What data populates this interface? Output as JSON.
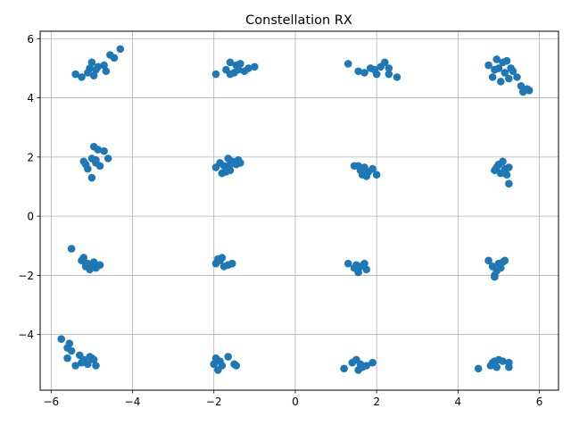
{
  "chart_data": {
    "type": "scatter",
    "title": "Constellation RX",
    "xlabel": "",
    "ylabel": "",
    "xlim": [
      -6.27,
      6.47
    ],
    "ylim": [
      -5.88,
      6.25
    ],
    "xticks": [
      -6,
      -4,
      -2,
      0,
      2,
      4,
      6
    ],
    "yticks": [
      -4,
      -2,
      0,
      2,
      4,
      6
    ],
    "grid": true,
    "marker_color": "#1f77b4",
    "series": [
      {
        "points": [
          [
            -5.4,
            4.8
          ],
          [
            -5.25,
            4.7
          ],
          [
            -5.1,
            4.85
          ],
          [
            -4.95,
            4.75
          ],
          [
            -4.85,
            5.05
          ],
          [
            -4.7,
            5.1
          ],
          [
            -4.65,
            4.9
          ],
          [
            -4.55,
            5.45
          ],
          [
            -4.45,
            5.35
          ],
          [
            -4.3,
            5.65
          ],
          [
            -5.0,
            5.2
          ],
          [
            -4.9,
            4.95
          ],
          [
            -5.05,
            5.0
          ],
          [
            -1.95,
            4.8
          ],
          [
            -1.7,
            4.95
          ],
          [
            -1.6,
            5.2
          ],
          [
            -1.5,
            4.85
          ],
          [
            -1.45,
            5.1
          ],
          [
            -1.35,
            5.15
          ],
          [
            -1.25,
            4.9
          ],
          [
            -1.15,
            5.0
          ],
          [
            -1.0,
            5.05
          ],
          [
            -1.6,
            4.8
          ],
          [
            -1.4,
            4.95
          ],
          [
            1.3,
            5.15
          ],
          [
            1.55,
            4.9
          ],
          [
            1.7,
            4.85
          ],
          [
            1.85,
            5.0
          ],
          [
            2.0,
            4.8
          ],
          [
            2.1,
            5.05
          ],
          [
            2.2,
            5.2
          ],
          [
            2.3,
            5.0
          ],
          [
            2.5,
            4.7
          ],
          [
            1.95,
            4.95
          ],
          [
            2.3,
            4.8
          ],
          [
            4.75,
            5.1
          ],
          [
            4.85,
            4.7
          ],
          [
            4.95,
            5.3
          ],
          [
            5.0,
            5.0
          ],
          [
            5.05,
            4.55
          ],
          [
            5.1,
            5.2
          ],
          [
            5.15,
            4.85
          ],
          [
            5.2,
            5.25
          ],
          [
            5.3,
            5.0
          ],
          [
            5.35,
            4.9
          ],
          [
            5.45,
            4.7
          ],
          [
            5.55,
            4.4
          ],
          [
            5.6,
            4.2
          ],
          [
            5.7,
            4.3
          ],
          [
            5.75,
            4.25
          ],
          [
            4.9,
            4.95
          ],
          [
            5.25,
            4.65
          ],
          [
            -5.2,
            1.85
          ],
          [
            -5.1,
            1.6
          ],
          [
            -5.0,
            1.95
          ],
          [
            -4.95,
            2.35
          ],
          [
            -4.9,
            1.8
          ],
          [
            -4.85,
            2.25
          ],
          [
            -4.8,
            1.7
          ],
          [
            -4.7,
            2.2
          ],
          [
            -4.6,
            1.95
          ],
          [
            -5.0,
            1.3
          ],
          [
            -5.15,
            1.75
          ],
          [
            -4.9,
            1.9
          ],
          [
            -1.95,
            1.65
          ],
          [
            -1.85,
            1.8
          ],
          [
            -1.75,
            1.7
          ],
          [
            -1.65,
            1.95
          ],
          [
            -1.6,
            1.55
          ],
          [
            -1.55,
            1.85
          ],
          [
            -1.45,
            1.75
          ],
          [
            -1.4,
            1.9
          ],
          [
            -1.35,
            1.8
          ],
          [
            -1.7,
            1.5
          ],
          [
            -1.8,
            1.45
          ],
          [
            -1.6,
            1.75
          ],
          [
            1.45,
            1.7
          ],
          [
            1.6,
            1.55
          ],
          [
            1.65,
            1.4
          ],
          [
            1.7,
            1.65
          ],
          [
            1.8,
            1.5
          ],
          [
            1.9,
            1.6
          ],
          [
            2.0,
            1.4
          ],
          [
            1.75,
            1.35
          ],
          [
            1.55,
            1.7
          ],
          [
            4.9,
            1.55
          ],
          [
            5.0,
            1.75
          ],
          [
            5.05,
            1.45
          ],
          [
            5.1,
            1.85
          ],
          [
            5.15,
            1.6
          ],
          [
            5.2,
            1.4
          ],
          [
            5.25,
            1.65
          ],
          [
            5.25,
            1.1
          ],
          [
            4.95,
            1.65
          ],
          [
            -5.5,
            -1.1
          ],
          [
            -5.25,
            -1.5
          ],
          [
            -5.15,
            -1.7
          ],
          [
            -5.05,
            -1.8
          ],
          [
            -4.95,
            -1.55
          ],
          [
            -4.9,
            -1.75
          ],
          [
            -4.8,
            -1.65
          ],
          [
            -5.1,
            -1.6
          ],
          [
            -5.0,
            -1.7
          ],
          [
            -5.2,
            -1.4
          ],
          [
            -1.95,
            -1.6
          ],
          [
            -1.85,
            -1.5
          ],
          [
            -1.8,
            -1.4
          ],
          [
            -1.75,
            -1.7
          ],
          [
            -1.65,
            -1.65
          ],
          [
            -1.55,
            -1.6
          ],
          [
            -1.9,
            -1.45
          ],
          [
            1.3,
            -1.6
          ],
          [
            1.45,
            -1.75
          ],
          [
            1.55,
            -1.9
          ],
          [
            1.6,
            -1.7
          ],
          [
            1.7,
            -1.6
          ],
          [
            1.75,
            -1.8
          ],
          [
            1.5,
            -1.65
          ],
          [
            4.75,
            -1.5
          ],
          [
            4.85,
            -1.7
          ],
          [
            4.9,
            -2.0
          ],
          [
            4.95,
            -1.85
          ],
          [
            5.0,
            -1.6
          ],
          [
            5.1,
            -1.55
          ],
          [
            5.15,
            -1.5
          ],
          [
            4.9,
            -2.05
          ],
          [
            5.05,
            -1.75
          ],
          [
            -5.75,
            -4.15
          ],
          [
            -5.6,
            -4.8
          ],
          [
            -5.55,
            -4.3
          ],
          [
            -5.5,
            -4.55
          ],
          [
            -5.4,
            -5.05
          ],
          [
            -5.3,
            -4.7
          ],
          [
            -5.2,
            -4.85
          ],
          [
            -5.1,
            -5.0
          ],
          [
            -5.05,
            -4.75
          ],
          [
            -4.95,
            -4.85
          ],
          [
            -4.9,
            -5.05
          ],
          [
            -5.25,
            -4.95
          ],
          [
            -5.0,
            -4.8
          ],
          [
            -5.6,
            -4.45
          ],
          [
            -2.0,
            -5.0
          ],
          [
            -1.95,
            -4.8
          ],
          [
            -1.9,
            -5.2
          ],
          [
            -1.8,
            -5.05
          ],
          [
            -1.65,
            -4.75
          ],
          [
            -1.5,
            -5.0
          ],
          [
            -1.45,
            -5.05
          ],
          [
            -1.85,
            -4.9
          ],
          [
            1.2,
            -5.15
          ],
          [
            1.4,
            -4.95
          ],
          [
            1.5,
            -4.85
          ],
          [
            1.55,
            -5.2
          ],
          [
            1.65,
            -5.1
          ],
          [
            1.75,
            -5.05
          ],
          [
            1.9,
            -4.95
          ],
          [
            1.6,
            -5.0
          ],
          [
            4.5,
            -5.15
          ],
          [
            4.8,
            -5.05
          ],
          [
            4.9,
            -4.9
          ],
          [
            4.95,
            -5.1
          ],
          [
            5.0,
            -4.85
          ],
          [
            5.1,
            -4.9
          ],
          [
            5.25,
            -5.1
          ],
          [
            5.25,
            -4.95
          ],
          [
            4.85,
            -4.95
          ]
        ]
      }
    ]
  }
}
